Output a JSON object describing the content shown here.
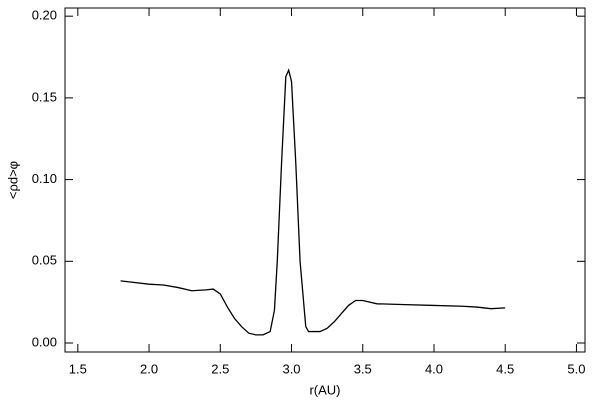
{
  "chart_data": {
    "type": "line",
    "xlabel": "r(AU)",
    "ylabel": "<ρd>φ",
    "x": [
      1.8,
      2.0,
      2.1,
      2.2,
      2.3,
      2.4,
      2.45,
      2.5,
      2.55,
      2.6,
      2.65,
      2.7,
      2.75,
      2.8,
      2.85,
      2.88,
      2.9,
      2.93,
      2.96,
      2.98,
      3.0,
      3.03,
      3.06,
      3.1,
      3.12,
      3.2,
      3.25,
      3.3,
      3.35,
      3.4,
      3.45,
      3.5,
      3.6,
      3.8,
      4.0,
      4.2,
      4.3,
      4.4,
      4.5
    ],
    "series": [
      {
        "color": "#000000",
        "values": [
          0.038,
          0.036,
          0.0355,
          0.034,
          0.032,
          0.0325,
          0.033,
          0.03,
          0.022,
          0.015,
          0.01,
          0.006,
          0.005,
          0.005,
          0.007,
          0.02,
          0.05,
          0.11,
          0.163,
          0.167,
          0.16,
          0.11,
          0.05,
          0.01,
          0.007,
          0.007,
          0.009,
          0.013,
          0.018,
          0.023,
          0.026,
          0.026,
          0.024,
          0.0235,
          0.023,
          0.0225,
          0.022,
          0.021,
          0.0215
        ]
      }
    ],
    "xlim": [
      1.41,
      5.06
    ],
    "xticks": [
      1.5,
      {
        "value": 2.0,
        "label": "2.0"
      },
      2.5,
      {
        "value": 3.0,
        "label": "3.0"
      },
      3.5,
      {
        "value": 4.0,
        "label": "4.0"
      },
      4.5,
      {
        "value": 5.0,
        "label": "5.0"
      }
    ],
    "ylim": [
      -0.0055,
      0.205
    ],
    "yticks": [
      {
        "value": 0,
        "label": "0.00"
      },
      {
        "value": 0.05,
        "label": "0.05"
      },
      {
        "value": 0.1,
        "label": "0.10"
      },
      {
        "value": 0.15,
        "label": "0.15"
      },
      {
        "value": 0.2,
        "label": "0.20"
      }
    ]
  }
}
